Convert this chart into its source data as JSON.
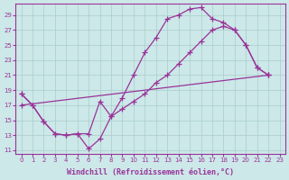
{
  "xlabel": "Windchill (Refroidissement éolien,°C)",
  "ylabel": "",
  "background_color": "#cce8e8",
  "grid_color": "#aacccc",
  "line_color": "#993399",
  "xlim": [
    -0.5,
    23.5
  ],
  "ylim": [
    10.5,
    30.5
  ],
  "xticks": [
    0,
    1,
    2,
    3,
    4,
    5,
    6,
    7,
    8,
    9,
    10,
    11,
    12,
    13,
    14,
    15,
    16,
    17,
    18,
    19,
    20,
    21,
    22,
    23
  ],
  "yticks": [
    11,
    13,
    15,
    17,
    19,
    21,
    23,
    25,
    27,
    29
  ],
  "line1_x": [
    0,
    1,
    2,
    3,
    4,
    5,
    6,
    7,
    8,
    9,
    10,
    11,
    12,
    13,
    14,
    15,
    16,
    17,
    18,
    19,
    20,
    21,
    22
  ],
  "line1_y": [
    18.5,
    17.0,
    14.8,
    13.2,
    13.0,
    13.2,
    11.2,
    12.5,
    15.5,
    18.0,
    21.0,
    24.0,
    26.0,
    28.5,
    29.0,
    29.8,
    30.0,
    28.5,
    28.0,
    27.0,
    25.0,
    22.0,
    21.0
  ],
  "line2_x": [
    0,
    1,
    2,
    3,
    4,
    5,
    6,
    7,
    8,
    9,
    10,
    11,
    12,
    13,
    14,
    15,
    16,
    17,
    18,
    19,
    20,
    21,
    22
  ],
  "line2_y": [
    18.5,
    17.0,
    14.8,
    13.2,
    13.0,
    13.2,
    13.2,
    17.5,
    15.5,
    16.5,
    17.5,
    18.5,
    20.0,
    21.0,
    22.5,
    24.0,
    25.5,
    27.0,
    27.5,
    27.0,
    25.0,
    22.0,
    21.0
  ],
  "line3_x": [
    0,
    22
  ],
  "line3_y": [
    17.0,
    21.0
  ],
  "marker_size": 4,
  "linewidth": 0.9,
  "tick_fontsize": 5.0,
  "label_fontsize": 6.0
}
